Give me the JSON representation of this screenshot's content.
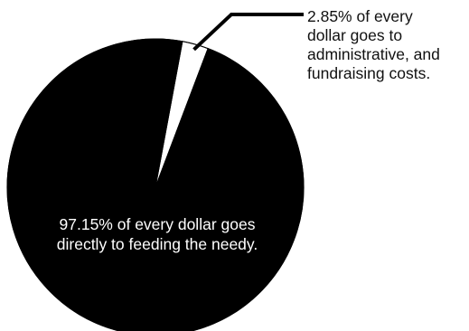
{
  "chart_data": {
    "type": "pie",
    "title": "",
    "slices": [
      {
        "value": 97.15,
        "label_lines": [
          "97.15% of every dollar goes",
          "directly to feeding the needy."
        ],
        "color": "#000000"
      },
      {
        "value": 2.85,
        "label_lines": [
          "2.85% of every",
          "dollar goes to",
          "administrative, and",
          "fundraising costs."
        ],
        "color": "#ffffff"
      }
    ],
    "legend": "none"
  }
}
